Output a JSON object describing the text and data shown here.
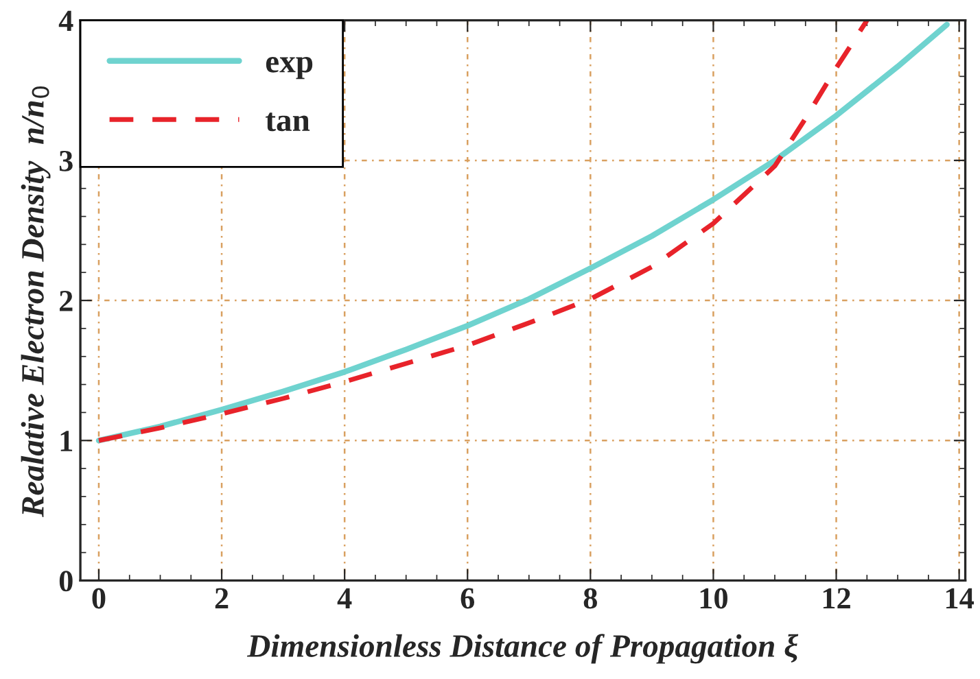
{
  "chart_data": {
    "type": "line",
    "xlabel": "Dimensionless Distance of Propagation ξ",
    "ylabel": "Realative Electron Density  n/n$_{0}$",
    "xlim": [
      -0.3,
      14.1
    ],
    "ylim": [
      0,
      4
    ],
    "xticks": [
      0,
      2,
      4,
      6,
      8,
      10,
      12,
      14
    ],
    "yticks": [
      0,
      1,
      2,
      3,
      4
    ],
    "grid": true,
    "legend": "top left",
    "series": [
      {
        "name": "exp",
        "color": "#6fd3cf",
        "line_style": "solid",
        "x": [
          0,
          1,
          2,
          3,
          4,
          5,
          6,
          7,
          8,
          9,
          10,
          11,
          12,
          13,
          13.8
        ],
        "values": [
          1.0,
          1.1,
          1.22,
          1.35,
          1.49,
          1.65,
          1.82,
          2.01,
          2.23,
          2.46,
          2.72,
          3.0,
          3.32,
          3.67,
          3.97
        ]
      },
      {
        "name": "tan",
        "color": "#e8232a",
        "line_style": "dashed",
        "x": [
          0,
          1,
          2,
          3,
          4,
          5,
          6,
          7,
          8,
          9,
          10,
          11,
          11.5,
          12,
          12.5
        ],
        "values": [
          1.0,
          1.09,
          1.19,
          1.3,
          1.42,
          1.55,
          1.68,
          1.84,
          2.01,
          2.24,
          2.55,
          2.96,
          3.3,
          3.66,
          4.0
        ]
      }
    ]
  }
}
